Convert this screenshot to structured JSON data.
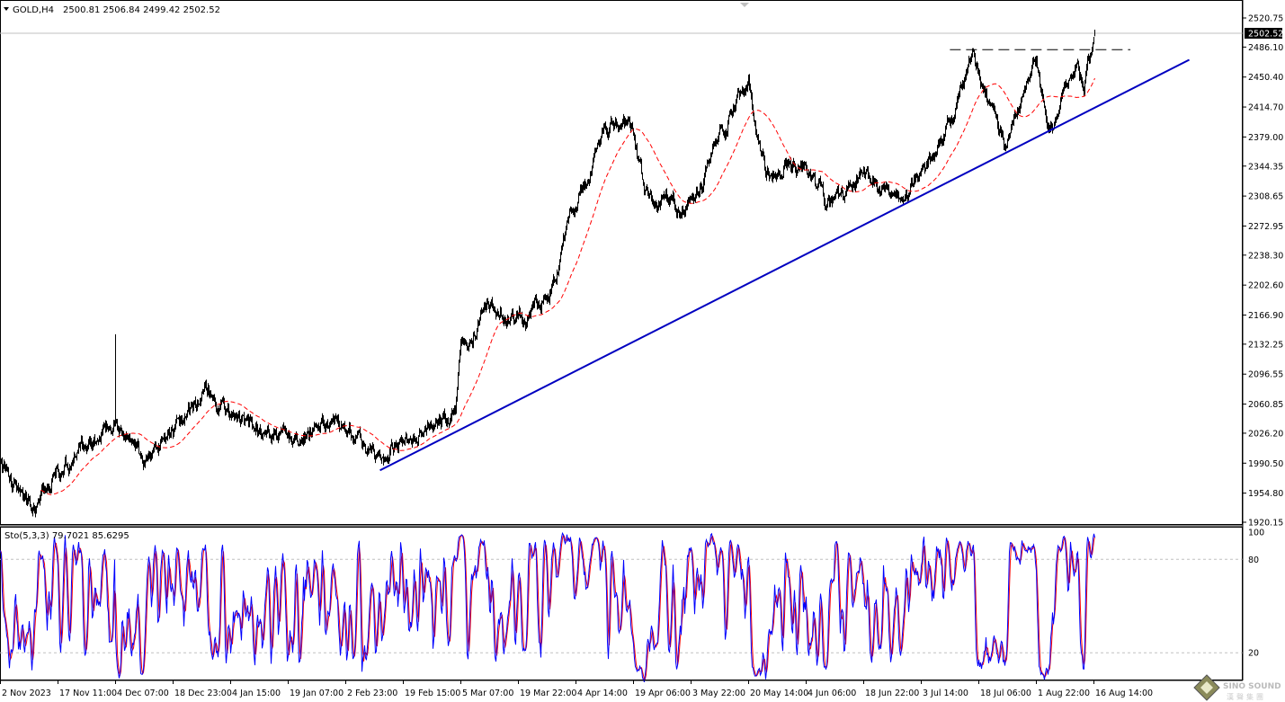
{
  "header": {
    "symbol": "GOLD,H4",
    "ohlc": "2500.81 2506.84 2499.42 2502.52"
  },
  "indicator": {
    "label": "Sto(5,3,3) 79.7021 85.6295"
  },
  "watermark": {
    "text": "SINO SOUND",
    "subtext": "漢聲集團"
  },
  "colors": {
    "candles": "#000000",
    "moving_average": "#ff0000",
    "trendline": "#0000c0",
    "stoch_main": "#0000ff",
    "stoch_signal": "#ff0000",
    "bid_line": "#c0c0c0"
  },
  "chart_data": {
    "type": "line",
    "title": "GOLD,H4",
    "timeframe": "H4",
    "current": {
      "open": 2500.81,
      "high": 2506.84,
      "low": 2499.42,
      "close": 2502.52
    },
    "bid_label": "2502.52",
    "ylim": [
      1920.15,
      2520.75
    ],
    "y_ticks": [
      "2520.75",
      "2486.10",
      "2450.40",
      "2414.70",
      "2379.00",
      "2344.35",
      "2308.65",
      "2272.95",
      "2238.30",
      "2202.60",
      "2166.90",
      "2132.25",
      "2096.55",
      "2060.85",
      "2026.20",
      "1990.50",
      "1954.80",
      "1920.15"
    ],
    "x_ticks": [
      "2 Nov 2023",
      "17 Nov 11:00",
      "4 Dec 07:00",
      "18 Dec 23:00",
      "4 Jan 15:00",
      "19 Jan 07:00",
      "2 Feb 23:00",
      "19 Feb 15:00",
      "5 Mar 07:00",
      "19 Mar 22:00",
      "4 Apr 14:00",
      "19 Apr 06:00",
      "3 May 22:00",
      "20 May 14:00",
      "4 Jun 06:00",
      "18 Jun 22:00",
      "3 Jul 14:00",
      "18 Jul 06:00",
      "1 Aug 22:00",
      "16 Aug 14:00"
    ],
    "price_path": [
      {
        "time": "2023-11-02T00:00",
        "close": 1985
      },
      {
        "time": "2023-11-11T00:00",
        "close": 1937
      },
      {
        "time": "2023-11-17T11:00",
        "close": 1980
      },
      {
        "time": "2023-11-28T00:00",
        "close": 2015
      },
      {
        "time": "2023-12-04T07:00",
        "close": 2039,
        "high": 2144
      },
      {
        "time": "2023-12-12T00:00",
        "close": 1985
      },
      {
        "time": "2023-12-18T23:00",
        "close": 2030
      },
      {
        "time": "2023-12-29T00:00",
        "close": 2076
      },
      {
        "time": "2024-01-04T15:00",
        "close": 2045
      },
      {
        "time": "2024-01-19T07:00",
        "close": 2023
      },
      {
        "time": "2024-02-02T23:00",
        "close": 2039
      },
      {
        "time": "2024-02-13T00:00",
        "close": 1991
      },
      {
        "time": "2024-02-19T15:00",
        "close": 2018
      },
      {
        "time": "2024-03-04T00:00",
        "close": 2050
      },
      {
        "time": "2024-03-05T07:00",
        "close": 2125
      },
      {
        "time": "2024-03-12T00:00",
        "close": 2178
      },
      {
        "time": "2024-03-19T22:00",
        "close": 2162
      },
      {
        "time": "2024-03-28T00:00",
        "close": 2188
      },
      {
        "time": "2024-04-04T14:00",
        "close": 2296
      },
      {
        "time": "2024-04-09T00:00",
        "close": 2350
      },
      {
        "time": "2024-04-12T00:00",
        "close": 2392
      },
      {
        "time": "2024-04-19T06:00",
        "close": 2392
      },
      {
        "time": "2024-04-22T00:00",
        "close": 2317
      },
      {
        "time": "2024-05-01T00:00",
        "close": 2296
      },
      {
        "time": "2024-05-07T00:00",
        "close": 2317
      },
      {
        "time": "2024-05-10T00:00",
        "close": 2371
      },
      {
        "time": "2024-05-20T14:00",
        "close": 2440
      },
      {
        "time": "2024-05-25T00:00",
        "close": 2339
      },
      {
        "time": "2024-06-04T06:00",
        "close": 2344
      },
      {
        "time": "2024-06-10T00:00",
        "close": 2296
      },
      {
        "time": "2024-06-18T22:00",
        "close": 2333
      },
      {
        "time": "2024-06-27T00:00",
        "close": 2301
      },
      {
        "time": "2024-07-03T14:00",
        "close": 2333
      },
      {
        "time": "2024-07-08T00:00",
        "close": 2365
      },
      {
        "time": "2024-07-17T00:00",
        "close": 2478
      },
      {
        "time": "2024-07-20T00:00",
        "close": 2424
      },
      {
        "time": "2024-07-25T00:00",
        "close": 2365
      },
      {
        "time": "2024-08-01T22:00",
        "close": 2467
      },
      {
        "time": "2024-08-05T00:00",
        "close": 2387
      },
      {
        "time": "2024-08-12T00:00",
        "close": 2467
      },
      {
        "time": "2024-08-14T00:00",
        "close": 2440
      },
      {
        "time": "2024-08-16T20:00",
        "close": 2502.52
      }
    ],
    "trendline": {
      "start": {
        "time": "2024-02-13T00:00",
        "price": 1982
      },
      "end": {
        "time": "2024-09-10T00:00",
        "price": 2471
      }
    },
    "resistance_line": {
      "price": 2483,
      "from": "2024-07-11T00:00",
      "to": "2024-08-26T00:00",
      "style": "dashed"
    },
    "moving_average": {
      "style": "dashed"
    },
    "stochastic": {
      "k": 5,
      "d": 3,
      "slowing": 3,
      "main": 79.7021,
      "signal": 85.6295,
      "levels": [
        "100",
        "80",
        "20"
      ],
      "ylim": [
        0,
        100
      ]
    }
  }
}
